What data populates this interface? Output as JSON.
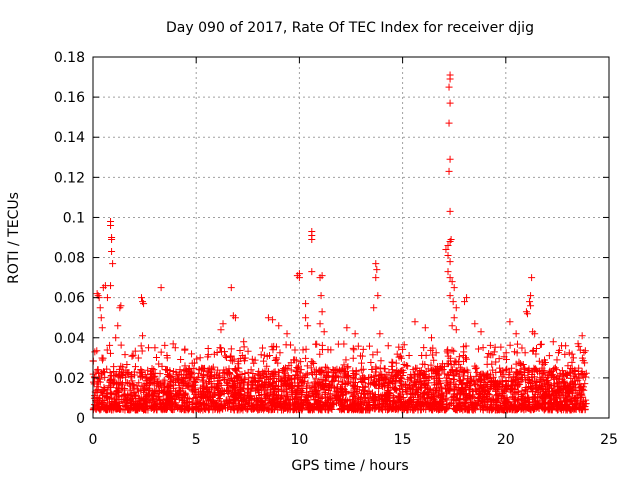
{
  "chart_data": {
    "type": "scatter",
    "title": "Day 090 of 2017, Rate Of TEC Index for receiver djig",
    "xlabel": "GPS time / hours",
    "ylabel": "ROTI / TECUs",
    "xlim": [
      0,
      25
    ],
    "ylim": [
      0,
      0.18
    ],
    "xticks": [
      0,
      5,
      10,
      15,
      20,
      25
    ],
    "xtick_labels": [
      "0",
      "5",
      "10",
      "15",
      "20",
      "25"
    ],
    "yticks": [
      0,
      0.02,
      0.04,
      0.06,
      0.08,
      0.1,
      0.12,
      0.14,
      0.16,
      0.18
    ],
    "ytick_labels": [
      "0",
      "0.02",
      "0.04",
      "0.06",
      "0.08",
      "0.1",
      "0.12",
      "0.14",
      "0.16",
      "0.18"
    ],
    "grid": true,
    "marker": "+",
    "color": "#ff0000",
    "background_band": {
      "x_range": [
        0,
        23.9
      ],
      "typical_range": [
        0.004,
        0.025
      ],
      "description_level": "dense"
    },
    "series": [
      {
        "name": "ROTI",
        "points": [
          [
            0.2,
            0.062
          ],
          [
            0.25,
            0.061
          ],
          [
            0.3,
            0.06
          ],
          [
            0.35,
            0.055
          ],
          [
            0.4,
            0.05
          ],
          [
            0.45,
            0.045
          ],
          [
            0.5,
            0.065
          ],
          [
            0.6,
            0.066
          ],
          [
            0.7,
            0.06
          ],
          [
            0.85,
            0.098
          ],
          [
            0.85,
            0.096
          ],
          [
            0.9,
            0.09
          ],
          [
            0.9,
            0.089
          ],
          [
            0.9,
            0.083
          ],
          [
            0.95,
            0.077
          ],
          [
            0.85,
            0.066
          ],
          [
            1.3,
            0.055
          ],
          [
            1.35,
            0.056
          ],
          [
            1.2,
            0.046
          ],
          [
            1.1,
            0.04
          ],
          [
            2.35,
            0.06
          ],
          [
            2.4,
            0.058
          ],
          [
            2.45,
            0.057
          ],
          [
            2.4,
            0.041
          ],
          [
            3.3,
            0.065
          ],
          [
            3.0,
            0.035
          ],
          [
            3.6,
            0.03
          ],
          [
            6.7,
            0.065
          ],
          [
            6.8,
            0.051
          ],
          [
            6.9,
            0.05
          ],
          [
            6.3,
            0.047
          ],
          [
            6.2,
            0.044
          ],
          [
            7.3,
            0.038
          ],
          [
            8.5,
            0.05
          ],
          [
            8.7,
            0.049
          ],
          [
            9.0,
            0.046
          ],
          [
            9.4,
            0.042
          ],
          [
            9.9,
            0.071
          ],
          [
            10.0,
            0.072
          ],
          [
            10.0,
            0.07
          ],
          [
            10.3,
            0.057
          ],
          [
            10.3,
            0.05
          ],
          [
            10.4,
            0.046
          ],
          [
            10.6,
            0.093
          ],
          [
            10.6,
            0.091
          ],
          [
            10.6,
            0.089
          ],
          [
            10.6,
            0.073
          ],
          [
            11.0,
            0.07
          ],
          [
            11.1,
            0.071
          ],
          [
            11.05,
            0.061
          ],
          [
            11.1,
            0.053
          ],
          [
            11.0,
            0.047
          ],
          [
            11.2,
            0.043
          ],
          [
            12.3,
            0.045
          ],
          [
            12.7,
            0.042
          ],
          [
            13.7,
            0.077
          ],
          [
            13.75,
            0.074
          ],
          [
            13.7,
            0.07
          ],
          [
            13.8,
            0.061
          ],
          [
            13.6,
            0.055
          ],
          [
            13.9,
            0.042
          ],
          [
            15.6,
            0.048
          ],
          [
            16.1,
            0.045
          ],
          [
            16.4,
            0.04
          ],
          [
            17.3,
            0.171
          ],
          [
            17.3,
            0.169
          ],
          [
            17.25,
            0.165
          ],
          [
            17.3,
            0.157
          ],
          [
            17.25,
            0.147
          ],
          [
            17.3,
            0.129
          ],
          [
            17.25,
            0.123
          ],
          [
            17.3,
            0.103
          ],
          [
            17.35,
            0.089
          ],
          [
            17.3,
            0.088
          ],
          [
            17.2,
            0.086
          ],
          [
            17.1,
            0.084
          ],
          [
            17.2,
            0.081
          ],
          [
            17.3,
            0.078
          ],
          [
            17.2,
            0.073
          ],
          [
            17.3,
            0.07
          ],
          [
            17.4,
            0.068
          ],
          [
            17.5,
            0.065
          ],
          [
            17.3,
            0.061
          ],
          [
            17.45,
            0.058
          ],
          [
            17.6,
            0.055
          ],
          [
            17.5,
            0.05
          ],
          [
            17.4,
            0.046
          ],
          [
            17.6,
            0.044
          ],
          [
            18.1,
            0.06
          ],
          [
            18.0,
            0.058
          ],
          [
            18.5,
            0.047
          ],
          [
            18.8,
            0.043
          ],
          [
            20.2,
            0.048
          ],
          [
            20.5,
            0.042
          ],
          [
            21.0,
            0.053
          ],
          [
            21.05,
            0.052
          ],
          [
            21.15,
            0.058
          ],
          [
            21.2,
            0.061
          ],
          [
            21.2,
            0.056
          ],
          [
            21.25,
            0.07
          ],
          [
            21.3,
            0.043
          ],
          [
            21.4,
            0.042
          ],
          [
            22.3,
            0.038
          ],
          [
            22.7,
            0.036
          ],
          [
            23.5,
            0.037
          ],
          [
            23.7,
            0.041
          ]
        ]
      }
    ]
  }
}
